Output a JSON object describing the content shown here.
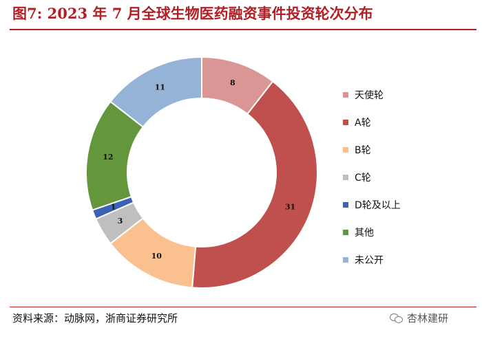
{
  "title": "图7:   2023 年 7 月全球生物医药融资事件投资轮次分布",
  "source": "资料来源：动脉网，浙商证券研究所",
  "watermark": "杏林建研",
  "chart_data": {
    "type": "pie",
    "style": "donut",
    "legend_position": "right",
    "categories": [
      "天使轮",
      "A轮",
      "B轮",
      "C轮",
      "D轮及以上",
      "其他",
      "未公开"
    ],
    "values": [
      8,
      31,
      10,
      3,
      1,
      12,
      11
    ],
    "colors": [
      "#d99694",
      "#c0504d",
      "#fac090",
      "#bfbfbf",
      "#3b62b3",
      "#64963c",
      "#95b3d7"
    ]
  }
}
